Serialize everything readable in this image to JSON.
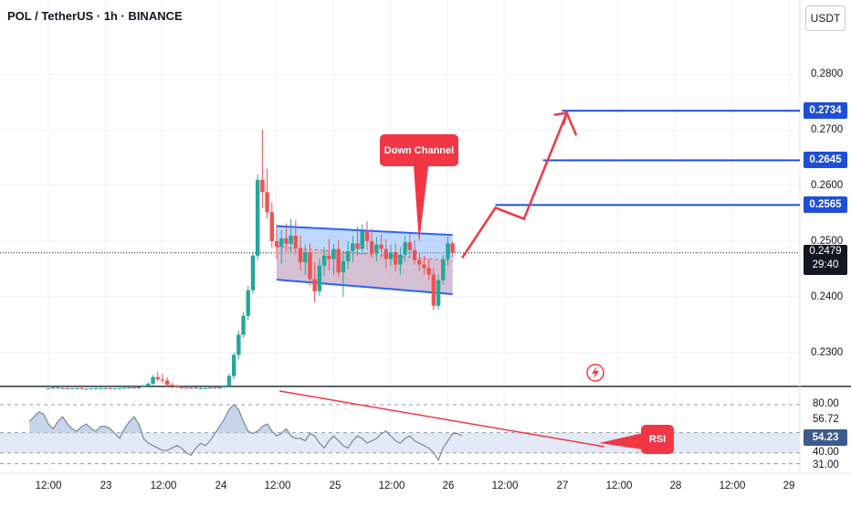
{
  "title": "POL / TetherUS · 1h · BINANCE",
  "currency_button": "USDT",
  "colors": {
    "bull": "#26a69a",
    "bear": "#ef5350",
    "channel_line": "#2962ff",
    "channel_fill": "#4a90f5",
    "target_line": "#1e4fd8",
    "projection": "#f23645",
    "rsi_line": "#7e8594",
    "rsi_fill": "#b9cbe6",
    "badge": "#1e4fd8"
  },
  "annotations": {
    "channel_label": "Down Channel",
    "rsi_label": "RSI"
  },
  "price_axis": {
    "ticks": [
      "0.2800",
      "0.2700",
      "0.2600",
      "0.2500",
      "0.2400",
      "0.2300"
    ],
    "target_badges": [
      "0.2734",
      "0.2645",
      "0.2565"
    ],
    "current_price": "0.2479",
    "countdown": "29:40"
  },
  "rsi_axis": {
    "ticks": [
      "80.00",
      "56.72",
      "40.00",
      "31.00"
    ],
    "current": "54.23"
  },
  "time_axis": [
    "12:00",
    "23",
    "12:00",
    "24",
    "12:00",
    "25",
    "12:00",
    "26",
    "12:00",
    "27",
    "12:00",
    "28",
    "12:00",
    "29"
  ],
  "chart_data": [
    {
      "type": "candlestick",
      "title": "POL / TetherUS · 1h · BINANCE",
      "ylim": [
        0.2235,
        0.288
      ],
      "x_range_hours": [
        -8,
        176
      ],
      "x_unit": "hours since 22 12:00",
      "candles": [
        [
          0,
          0.2236,
          0.2236,
          0.2236,
          0.2236
        ],
        [
          2,
          0.2236,
          0.2238,
          0.2235,
          0.2237
        ],
        [
          4,
          0.2237,
          0.2238,
          0.2236,
          0.2236
        ],
        [
          6,
          0.2236,
          0.2237,
          0.2235,
          0.2236
        ],
        [
          8,
          0.2236,
          0.2237,
          0.2235,
          0.2235
        ],
        [
          10,
          0.2235,
          0.2236,
          0.2234,
          0.2236
        ],
        [
          12,
          0.2236,
          0.2237,
          0.2235,
          0.2236
        ],
        [
          14,
          0.2236,
          0.2237,
          0.2235,
          0.2235
        ],
        [
          16,
          0.2235,
          0.2236,
          0.2234,
          0.2235
        ],
        [
          18,
          0.2235,
          0.2236,
          0.2234,
          0.2236
        ],
        [
          20,
          0.2236,
          0.2237,
          0.2235,
          0.2236
        ],
        [
          22,
          0.2236,
          0.2237,
          0.2235,
          0.2236
        ],
        [
          24,
          0.2236,
          0.2237,
          0.2235,
          0.2236
        ],
        [
          26,
          0.2236,
          0.2237,
          0.2235,
          0.2235
        ],
        [
          28,
          0.2235,
          0.2236,
          0.2234,
          0.2236
        ],
        [
          30,
          0.2236,
          0.2237,
          0.2235,
          0.2236
        ],
        [
          32,
          0.2236,
          0.2237,
          0.2235,
          0.2237
        ],
        [
          34,
          0.2237,
          0.2238,
          0.2236,
          0.2237
        ],
        [
          36,
          0.2237,
          0.2238,
          0.2236,
          0.2236
        ],
        [
          38,
          0.2236,
          0.2238,
          0.2235,
          0.2238
        ],
        [
          40,
          0.2238,
          0.2242,
          0.2237,
          0.224
        ],
        [
          42,
          0.224,
          0.2246,
          0.2238,
          0.2244
        ],
        [
          44,
          0.2244,
          0.226,
          0.2242,
          0.2256
        ],
        [
          46,
          0.2256,
          0.2266,
          0.2248,
          0.2252
        ],
        [
          48,
          0.2252,
          0.2262,
          0.2246,
          0.225
        ],
        [
          50,
          0.225,
          0.2256,
          0.2238,
          0.2242
        ],
        [
          52,
          0.2242,
          0.2246,
          0.2236,
          0.224
        ],
        [
          54,
          0.224,
          0.2242,
          0.2236,
          0.2238
        ],
        [
          56,
          0.2238,
          0.224,
          0.2235,
          0.2237
        ],
        [
          58,
          0.2237,
          0.2239,
          0.2235,
          0.2236
        ],
        [
          60,
          0.2236,
          0.2238,
          0.2235,
          0.2237
        ],
        [
          62,
          0.2237,
          0.2238,
          0.2235,
          0.2236
        ],
        [
          64,
          0.2236,
          0.2238,
          0.2235,
          0.2236
        ],
        [
          66,
          0.2236,
          0.2237,
          0.2235,
          0.2236
        ],
        [
          68,
          0.2236,
          0.2238,
          0.2235,
          0.2237
        ],
        [
          70,
          0.2237,
          0.2238,
          0.2235,
          0.2236
        ],
        [
          72,
          0.2236,
          0.224,
          0.2235,
          0.2238
        ],
        [
          74,
          0.2238,
          0.2242,
          0.2236,
          0.224
        ],
        [
          76,
          0.224,
          0.2262,
          0.2238,
          0.2258
        ],
        [
          78,
          0.2258,
          0.23,
          0.2252,
          0.2296
        ],
        [
          80,
          0.2296,
          0.234,
          0.2288,
          0.2332
        ],
        [
          82,
          0.2332,
          0.2372,
          0.2326,
          0.2366
        ],
        [
          84,
          0.2366,
          0.242,
          0.2358,
          0.2412
        ],
        [
          86,
          0.2412,
          0.248,
          0.2406,
          0.2474
        ],
        [
          88,
          0.2474,
          0.262,
          0.2466,
          0.261
        ],
        [
          90,
          0.261,
          0.27,
          0.256,
          0.2588
        ],
        [
          92,
          0.2588,
          0.263,
          0.254,
          0.2552
        ],
        [
          94,
          0.2552,
          0.257,
          0.2488,
          0.25
        ],
        [
          96,
          0.25,
          0.253,
          0.2468,
          0.249
        ],
        [
          98,
          0.249,
          0.252,
          0.246,
          0.2505
        ],
        [
          100,
          0.2505,
          0.2532,
          0.2482,
          0.2495
        ],
        [
          102,
          0.2495,
          0.254,
          0.2478,
          0.251
        ],
        [
          104,
          0.251,
          0.2538,
          0.2476,
          0.2488
        ],
        [
          106,
          0.2488,
          0.251,
          0.2448,
          0.2462
        ],
        [
          108,
          0.2462,
          0.2494,
          0.244,
          0.248
        ],
        [
          110,
          0.248,
          0.2496,
          0.242,
          0.2432
        ],
        [
          112,
          0.2432,
          0.2462,
          0.239,
          0.241
        ],
        [
          114,
          0.241,
          0.2468,
          0.2402,
          0.2456
        ],
        [
          116,
          0.2456,
          0.249,
          0.2438,
          0.2474
        ],
        [
          118,
          0.2474,
          0.2504,
          0.2448,
          0.2468
        ],
        [
          120,
          0.2468,
          0.2495,
          0.244,
          0.2486
        ],
        [
          122,
          0.2486,
          0.2502,
          0.2436,
          0.2444
        ],
        [
          124,
          0.2444,
          0.248,
          0.24,
          0.2464
        ],
        [
          126,
          0.2464,
          0.25,
          0.245,
          0.2482
        ],
        [
          128,
          0.2482,
          0.251,
          0.2462,
          0.2496
        ],
        [
          130,
          0.2496,
          0.2526,
          0.2474,
          0.2486
        ],
        [
          132,
          0.2486,
          0.253,
          0.2476,
          0.2518
        ],
        [
          134,
          0.2518,
          0.2536,
          0.2484,
          0.25
        ],
        [
          136,
          0.25,
          0.2522,
          0.247,
          0.2478
        ],
        [
          138,
          0.2478,
          0.2508,
          0.2464,
          0.2494
        ],
        [
          140,
          0.2494,
          0.2512,
          0.247,
          0.2486
        ],
        [
          142,
          0.2486,
          0.2504,
          0.2452,
          0.2468
        ],
        [
          144,
          0.2468,
          0.2494,
          0.2456,
          0.248
        ],
        [
          146,
          0.248,
          0.2496,
          0.2446,
          0.2458
        ],
        [
          148,
          0.2458,
          0.249,
          0.244,
          0.2476
        ],
        [
          150,
          0.2476,
          0.251,
          0.2464,
          0.2498
        ],
        [
          152,
          0.2498,
          0.2514,
          0.247,
          0.2484
        ],
        [
          154,
          0.2484,
          0.2502,
          0.2458,
          0.2466
        ],
        [
          156,
          0.2466,
          0.248,
          0.2446,
          0.2458
        ],
        [
          158,
          0.2458,
          0.2474,
          0.244,
          0.2452
        ],
        [
          160,
          0.2452,
          0.2468,
          0.243,
          0.244
        ],
        [
          162,
          0.244,
          0.2452,
          0.2376,
          0.2384
        ],
        [
          164,
          0.2384,
          0.244,
          0.2378,
          0.243
        ],
        [
          166,
          0.243,
          0.2476,
          0.2422,
          0.2468
        ],
        [
          168,
          0.2468,
          0.2508,
          0.2456,
          0.2496
        ],
        [
          170,
          0.2496,
          0.25,
          0.247,
          0.2479
        ]
      ],
      "down_channel": {
        "upper": [
          [
            96,
            0.2527
          ],
          [
            170,
            0.2511
          ]
        ],
        "lower": [
          [
            96,
            0.2431
          ],
          [
            170,
            0.2405
          ]
        ]
      },
      "target_lines": [
        {
          "value": 0.2734,
          "from_hour": 216
        },
        {
          "value": 0.2645,
          "from_hour": 208
        },
        {
          "value": 0.2565,
          "from_hour": 188
        }
      ],
      "projection_path": [
        [
          174,
          0.247
        ],
        [
          188,
          0.256
        ],
        [
          200,
          0.254
        ],
        [
          218,
          0.273
        ],
        [
          222,
          0.269
        ]
      ]
    },
    {
      "type": "line",
      "title": "RSI",
      "ylim": [
        28,
        92
      ],
      "x_range_hours": [
        -8,
        176
      ],
      "levels": [
        80,
        56.72,
        40,
        31
      ],
      "values": [
        66,
        70,
        74,
        72,
        64,
        60,
        66,
        70,
        64,
        60,
        58,
        62,
        64,
        60,
        58,
        62,
        62,
        60,
        56,
        52,
        60,
        66,
        70,
        64,
        52,
        48,
        46,
        44,
        42,
        42,
        44,
        46,
        44,
        40,
        38,
        44,
        48,
        46,
        50,
        56,
        62,
        68,
        76,
        80,
        76,
        66,
        58,
        56,
        58,
        62,
        64,
        58,
        54,
        56,
        60,
        54,
        52,
        52,
        50,
        56,
        54,
        48,
        44,
        50,
        54,
        50,
        46,
        44,
        50,
        54,
        52,
        48,
        50,
        52,
        56,
        58,
        54,
        50,
        48,
        52,
        54,
        50,
        48,
        46,
        44,
        40,
        34,
        44,
        50,
        56,
        56,
        54
      ]
    }
  ]
}
